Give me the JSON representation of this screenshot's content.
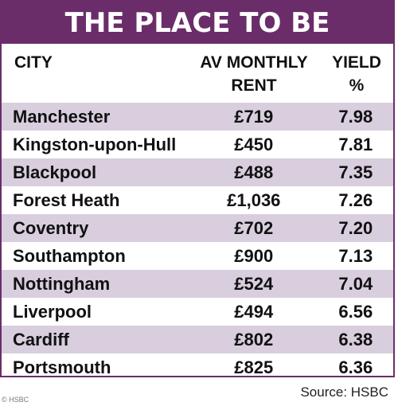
{
  "title": "THE PLACE TO BE",
  "headers": {
    "city": "CITY",
    "rent_line1": "AV MONTHLY",
    "rent_line2": "RENT",
    "yield_line1": "YIELD",
    "yield_line2": "%"
  },
  "rows": [
    {
      "city": "Manchester",
      "rent": "£719",
      "yield": "7.98"
    },
    {
      "city": "Kingston-upon-Hull",
      "rent": "£450",
      "yield": "7.81"
    },
    {
      "city": "Blackpool",
      "rent": "£488",
      "yield": "7.35"
    },
    {
      "city": "Forest Heath",
      "rent": "£1,036",
      "yield": "7.26"
    },
    {
      "city": "Coventry",
      "rent": "£702",
      "yield": "7.20"
    },
    {
      "city": "Southampton",
      "rent": "£900",
      "yield": "7.13"
    },
    {
      "city": "Nottingham",
      "rent": "£524",
      "yield": "7.04"
    },
    {
      "city": "Liverpool",
      "rent": "£494",
      "yield": "6.56"
    },
    {
      "city": "Cardiff",
      "rent": "£802",
      "yield": "6.38"
    },
    {
      "city": "Portsmouth",
      "rent": "£825",
      "yield": "6.36"
    }
  ],
  "credit": "© HSBC",
  "source": "Source: HSBC",
  "colors": {
    "header_bg": "#6b2d6a",
    "row_shade": "#d8cedd"
  }
}
